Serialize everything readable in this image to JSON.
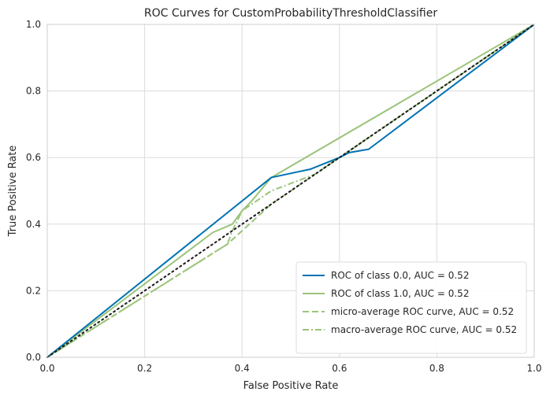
{
  "chart_data": {
    "type": "line",
    "title": "ROC Curves for CustomProbabilityThresholdClassifier",
    "xlabel": "False Positive Rate",
    "ylabel": "True Positive Rate",
    "xlim": [
      0.0,
      1.0
    ],
    "ylim": [
      0.0,
      1.0
    ],
    "xticks": [
      0.0,
      0.2,
      0.4,
      0.6,
      0.8,
      1.0
    ],
    "yticks": [
      0.0,
      0.2,
      0.4,
      0.6,
      0.8,
      1.0
    ],
    "xtick_labels": [
      "0.0",
      "0.2",
      "0.4",
      "0.6",
      "0.8",
      "1.0"
    ],
    "ytick_labels": [
      "0.0",
      "0.2",
      "0.4",
      "0.6",
      "0.8",
      "1.0"
    ],
    "grid": true,
    "legend_position": "lower-right",
    "series": [
      {
        "name": "ROC of class 0.0, AUC = 0.52",
        "color": "#0072b2",
        "style": "solid",
        "x": [
          0.0,
          0.46,
          0.54,
          0.6,
          0.62,
          0.66,
          1.0
        ],
        "y": [
          0.0,
          0.54,
          0.565,
          0.6,
          0.615,
          0.625,
          1.0
        ]
      },
      {
        "name": "ROC of class 1.0, AUC = 0.52",
        "color": "#9bc47a",
        "style": "solid",
        "x": [
          0.0,
          0.34,
          0.38,
          0.385,
          0.4,
          0.42,
          0.46,
          1.0
        ],
        "y": [
          0.0,
          0.375,
          0.4,
          0.41,
          0.44,
          0.47,
          0.54,
          1.0
        ]
      },
      {
        "name": "micro-average ROC curve, AUC = 0.52",
        "color": "#9bc47a",
        "style": "dashed",
        "x": [
          0.0,
          0.37,
          0.4,
          0.46,
          0.54,
          1.0
        ],
        "y": [
          0.0,
          0.34,
          0.38,
          0.46,
          0.54,
          1.0
        ]
      },
      {
        "name": "macro-average ROC curve, AUC = 0.52",
        "color": "#9bc47a",
        "style": "dashdot",
        "x": [
          0.0,
          0.37,
          0.38,
          0.4,
          0.46,
          0.55,
          1.0
        ],
        "y": [
          0.0,
          0.34,
          0.38,
          0.44,
          0.5,
          0.55,
          1.0
        ]
      }
    ],
    "reference_line": {
      "color": "#1a1a1a",
      "style": "dotted",
      "x": [
        0.0,
        1.0
      ],
      "y": [
        0.0,
        1.0
      ]
    }
  }
}
